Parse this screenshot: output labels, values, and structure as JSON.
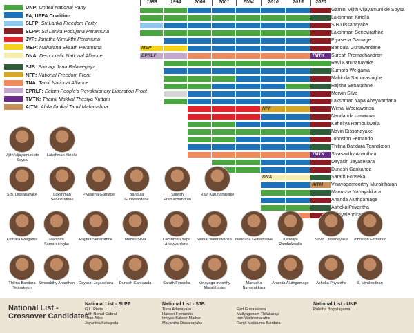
{
  "colors": {
    "UNP": "#4aa542",
    "PA": "#1e72b8",
    "SLFP": "#8fc8ec",
    "SLPP": "#8b1c22",
    "JVP": "#e3232b",
    "MEP": "#f4d21c",
    "DNA": "#f6eeb0",
    "SJB": "#2f5e3a",
    "NFF": "#d4a62a",
    "TNA": "#ef8a5c",
    "EPRLF": "#c4a7cf",
    "TMTK": "#6a2c8a",
    "AITM": "#c9915a",
    "NONE": "#d6d6d6"
  },
  "legend": [
    {
      "abbr": "UNP:",
      "name": "United National Party",
      "key": "UNP"
    },
    {
      "abbr": "PA, UPFA Coalition",
      "name": "",
      "key": "PA"
    },
    {
      "abbr": "SLFP:",
      "name": "Sri Lanka Freedom Party",
      "key": "SLFP"
    },
    {
      "abbr": "SLPP:",
      "name": "Sri Lanka Podujana Peramuna",
      "key": "SLPP"
    },
    {
      "abbr": "JVP:",
      "name": "Janatha Vimukthi Peramuna",
      "key": "JVP"
    },
    {
      "abbr": "MEP:",
      "name": "Mahajana Eksath Peramuna",
      "key": "MEP"
    },
    {
      "abbr": "DNA:",
      "name": "Democratic National Alliance",
      "key": "DNA"
    },
    {
      "abbr": "SJB:",
      "name": "Samagi Jana Balawegaya",
      "key": "SJB",
      "gap": true
    },
    {
      "abbr": "NFF:",
      "name": "National Freedom Front",
      "key": "NFF"
    },
    {
      "abbr": "TNA:",
      "name": "Tamil National Alliance",
      "key": "TNA"
    },
    {
      "abbr": "EPRLF:",
      "name": "Eelam People's Revolutionary Liberation Front",
      "key": "EPRLF"
    },
    {
      "abbr": "TMTK:",
      "name": "Thamil Makkal Thesiya Kuttani",
      "key": "TMTK"
    },
    {
      "abbr": "AITM:",
      "name": "Ahila Ilankai Tamil Mahasabha",
      "key": "AITM"
    }
  ],
  "years": [
    "1989",
    "1994",
    "2000",
    "2001",
    "2004",
    "2010",
    "2015",
    "2020"
  ],
  "members": [
    {
      "name": "Gamini Vijith Vijayamuni de Soysa",
      "terms": [
        "UNP",
        "UNP",
        "PA",
        "PA",
        "PA",
        "PA",
        "PA",
        "SLPP"
      ]
    },
    {
      "name": "Lakshman Kiriella",
      "terms": [
        "UNP",
        "UNP",
        "UNP",
        "UNP",
        "UNP",
        "UNP",
        "UNP",
        "SJB"
      ]
    },
    {
      "name": "S.B.Dissanayake",
      "terms": [
        "SLFP",
        "PA",
        "PA",
        "PA",
        "PA",
        "PA",
        "PA",
        "SLPP"
      ]
    },
    {
      "name": "Lakshman Senevirathne",
      "terms": [
        "UNP",
        "UNP",
        "UNP",
        "UNP",
        "UNP",
        "UNP",
        "UNP",
        "SLPP"
      ]
    },
    {
      "name": "Piyasena Gamage",
      "terms": [
        null,
        "PA",
        "PA",
        "PA",
        "PA",
        "PA",
        "PA",
        "SLPP"
      ]
    },
    {
      "name": "Bandula Gunawardane",
      "terms": [
        "MEP",
        "MEP",
        "PA",
        "PA",
        "PA",
        "PA",
        "PA",
        "SLPP"
      ],
      "labels": {
        "0": "MEP"
      }
    },
    {
      "name": "Suresh Premachandran",
      "terms": [
        "EPRLF",
        "EPRLF",
        "TNA",
        "TNA",
        "TNA",
        "TNA",
        "TNA",
        "TMTK"
      ],
      "labels": {
        "0": "EPRLF",
        "7": "TMTK"
      }
    },
    {
      "name": "Ravi Karunanayake",
      "terms": [
        null,
        "UNP",
        "UNP",
        "UNP",
        "UNP",
        "UNP",
        "UNP",
        "UNP"
      ]
    },
    {
      "name": "Kumara Welgama",
      "terms": [
        null,
        "PA",
        "PA",
        "PA",
        "PA",
        "PA",
        "PA",
        "SJB"
      ]
    },
    {
      "name": "Mahinda Samarasinghe",
      "terms": [
        null,
        "UNP",
        "UNP",
        "UNP",
        "PA",
        "PA",
        "PA",
        "SLPP"
      ]
    },
    {
      "name": "Rajitha Senarathne",
      "terms": [
        null,
        "UNP",
        "UNP",
        "PA",
        "PA",
        "PA",
        "UNP",
        "SJB"
      ]
    },
    {
      "name": "Mervin Silva",
      "terms": [
        null,
        "NONE",
        "PA",
        "PA",
        "PA",
        "PA",
        "PA",
        "SLPP"
      ]
    },
    {
      "name": "Lakshman Yapa Abeywardana",
      "terms": [
        null,
        "UNP",
        "PA",
        "PA",
        "PA",
        "PA",
        "PA",
        "SLPP"
      ]
    },
    {
      "name": "Wimal Weerawansa",
      "terms": [
        null,
        null,
        "JVP",
        "JVP",
        "JVP",
        "NFF",
        "NFF",
        "SLPP"
      ],
      "labels": {
        "5": "NFF"
      }
    },
    {
      "name": "Nandanda",
      "sub": "Gunathilake",
      "terms": [
        null,
        null,
        "JVP",
        "JVP",
        "JVP",
        "PA",
        "PA",
        "SLPP"
      ]
    },
    {
      "name": "Keheliya Rambukwella",
      "terms": [
        null,
        null,
        "UNP",
        "UNP",
        "PA",
        "PA",
        "PA",
        "SLPP"
      ]
    },
    {
      "name": "Navin Dissanayake",
      "terms": [
        null,
        null,
        "UNP",
        "UNP",
        "UNP",
        "UNP",
        "UNP",
        "SJB"
      ]
    },
    {
      "name": "Johnston Fernando",
      "terms": [
        null,
        null,
        "UNP",
        "UNP",
        "PA",
        "PA",
        "PA",
        "SLPP"
      ]
    },
    {
      "name": "Thilina Bandara Tennakoon",
      "terms": [
        null,
        null,
        "PA",
        "PA",
        "PA",
        "PA",
        "PA",
        "SJB"
      ]
    },
    {
      "name": "Sivasakthy Ananthan",
      "terms": [
        null,
        null,
        "TNA",
        "TNA",
        "TNA",
        "TNA",
        "TNA",
        "TMTK"
      ],
      "labels": {
        "7": "TMTK"
      }
    },
    {
      "name": "Dayasiri Jayasekara",
      "terms": [
        null,
        null,
        null,
        "UNP",
        "UNP",
        "PA",
        "PA",
        "SLPP"
      ]
    },
    {
      "name": "Dunesh Gankanda",
      "terms": [
        null,
        null,
        null,
        "UNP",
        "UNP",
        "PA",
        "PA",
        "SLPP"
      ]
    },
    {
      "name": "Sarath Fonseka",
      "terms": [
        null,
        null,
        null,
        null,
        null,
        "DNA",
        "DNA",
        "SJB"
      ],
      "labels": {
        "5": "DNA"
      }
    },
    {
      "name": "Vinayagamoorthy Muralitharan",
      "terms": [
        null,
        null,
        null,
        null,
        null,
        "PA",
        "PA",
        "AITM"
      ],
      "labels": {
        "7": "AITM"
      }
    },
    {
      "name": "Manusha Nanayakkara",
      "terms": [
        null,
        null,
        null,
        null,
        null,
        "UNP",
        "UNP",
        "SJB"
      ]
    },
    {
      "name": "Ananda Aluthgamage",
      "terms": [
        null,
        null,
        null,
        null,
        null,
        "PA",
        "PA",
        "SLPP"
      ]
    },
    {
      "name": "Ashoka Priyantha",
      "terms": [
        null,
        null,
        null,
        null,
        null,
        "UNP",
        "UNP",
        "SJB"
      ]
    },
    {
      "name": "S. Viyalendiran",
      "terms": [
        null,
        null,
        null,
        null,
        null,
        null,
        "TNA",
        "SLPP"
      ],
      "labels": {
        "6": "TNA"
      }
    }
  ],
  "portraits": [
    [
      "Vijith Vijayamuni de Soysa",
      "Lakshman Kiriella"
    ],
    [
      "S.B. Dissanayake",
      "Lakshman Senevirathne",
      "Piyasena Gamage",
      "Bandula Gunawardane",
      "Suresh Premachandran",
      "Ravi Karunanayake"
    ],
    [
      "Kumara Welgama",
      "Mahinda Samarasinghe",
      "Rajitha Senarathne",
      "Mervin Silva",
      "Lakshman Yapa Abeywardana",
      "Wimal Weerawansa",
      "Nandana Gunathilake",
      "Kehellya Rambukwella",
      "Navin Dissanayake",
      "Johnston Fernando"
    ],
    [
      "Thilina Bandara Tennakoon",
      "Sivasakthy Ananthan",
      "Dayasiri Jayasekara",
      "Dunesh Gankanda",
      "Sarath Fonseka",
      "Vinayaga-moorthy Muralitharan",
      "Manusha Nanayakkara",
      "Ananda Aluthgamage",
      "Ashoka Priyantha",
      "S. Viyalendiran"
    ]
  ],
  "footer": {
    "title_line1": "National List -",
    "title_line2": "Crossover Candidates",
    "slpp": {
      "heading": "National List - SLPP",
      "names": [
        "G.L. Pieris",
        "Ajith Niwad Cabral",
        "Tiran Alles",
        "Jayantha Ketagoda"
      ]
    },
    "sjb": {
      "heading": "National List - SJB",
      "names": [
        "Tissa Attanayake",
        "Hareen Fernando",
        "Imtiyas Bakeer Markar",
        "Mayantha Dissanayake"
      ]
    },
    "sjb2": {
      "names": [
        "Eart Gunasekera",
        "Mallyagenam Thilakaraja",
        "Iran Wickremaratne",
        "Ranjit Madduma Bandara"
      ]
    },
    "unp": {
      "heading": "National List - UNP",
      "names": [
        "Rohitha Bogollagama"
      ]
    }
  }
}
